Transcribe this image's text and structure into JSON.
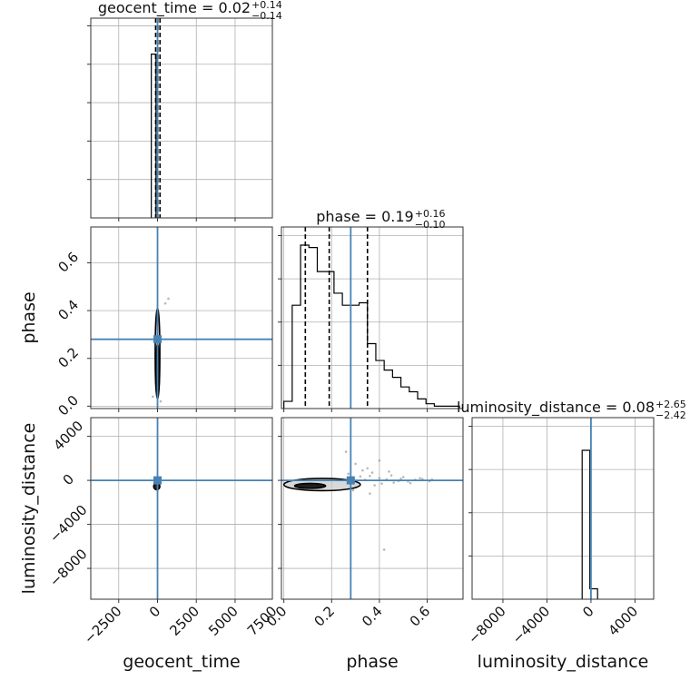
{
  "colors": {
    "truth": "#4682b4",
    "hist": "#000000",
    "grid": "#b0b0b0",
    "axes": "#333333",
    "samples": "#7f7f7f"
  },
  "chart_data": {
    "type": "corner",
    "parameters": [
      "geocent_time",
      "phase",
      "luminosity_distance"
    ],
    "truths": {
      "geocent_time": 0,
      "phase": 0.28,
      "luminosity_distance": 0
    },
    "titles": [
      {
        "param": "geocent_time",
        "text": "geocent_time = 0.02",
        "plus": "+0.14",
        "minus": "−0.14"
      },
      {
        "param": "phase",
        "text": "phase = 0.19",
        "plus": "+0.16",
        "minus": "−0.10"
      },
      {
        "param": "luminosity_distance",
        "text": "luminosity_distance = 0.08",
        "plus": "+2.65",
        "minus": "−2.42"
      }
    ],
    "xlabels": [
      "geocent_time",
      "phase",
      "luminosity_distance"
    ],
    "ylabels": [
      "phase",
      "luminosity_distance"
    ],
    "ranges": {
      "geocent_time": [
        -4300,
        7400
      ],
      "phase": [
        -0.01,
        0.75
      ],
      "luminosity_distance": [
        -10800,
        5700
      ]
    },
    "ticks": {
      "geocent_time": {
        "values": [
          -2500,
          0,
          2500,
          5000,
          7500
        ],
        "labels": [
          "−2500",
          "0",
          "2500",
          "5000",
          "7500"
        ]
      },
      "phase": {
        "values": [
          0.0,
          0.2,
          0.4,
          0.6
        ],
        "labels": [
          "0.0",
          "0.2",
          "0.4",
          "0.6"
        ]
      },
      "luminosity_distance": {
        "values": [
          -8000,
          -4000,
          0,
          4000
        ],
        "labels": [
          "−8000",
          "−4000",
          "0",
          "4000"
        ]
      }
    },
    "hist_geocent_time": {
      "bins": [
        -400,
        -100,
        200
      ],
      "counts": [
        1.0,
        0.0
      ]
    },
    "hist_phase": {
      "bins": [
        0.0,
        0.035,
        0.07,
        0.105,
        0.14,
        0.175,
        0.21,
        0.245,
        0.28,
        0.315,
        0.35,
        0.385,
        0.42,
        0.455,
        0.49,
        0.525,
        0.56,
        0.595,
        0.63,
        0.665,
        0.7,
        0.735
      ],
      "counts": [
        0.03,
        0.43,
        0.68,
        0.67,
        0.57,
        0.57,
        0.48,
        0.43,
        0.43,
        0.44,
        0.27,
        0.2,
        0.16,
        0.13,
        0.09,
        0.07,
        0.04,
        0.02,
        0.01,
        0.01,
        0.01
      ],
      "quantiles": [
        0.09,
        0.19,
        0.35
      ]
    },
    "hist_luminosity_distance": {
      "bins": [
        -800,
        -100,
        600
      ],
      "counts": [
        1.0,
        0.07
      ]
    },
    "hist_geocent_time_quantiles": [
      -120,
      20,
      160
    ],
    "hist_luminosity_distance_quantiles": [
      -2.34,
      0.08,
      2.73
    ],
    "scatter_phase_luminosity": {
      "points": [
        [
          0.3,
          1500
        ],
        [
          0.33,
          900
        ],
        [
          0.27,
          600
        ],
        [
          0.36,
          400
        ],
        [
          0.4,
          200
        ],
        [
          0.43,
          100
        ],
        [
          0.46,
          -200
        ],
        [
          0.49,
          150
        ],
        [
          0.52,
          -100
        ],
        [
          0.55,
          50
        ],
        [
          0.58,
          120
        ],
        [
          0.61,
          -80
        ],
        [
          0.45,
          450
        ],
        [
          0.38,
          -450
        ],
        [
          0.32,
          350
        ],
        [
          0.35,
          1100
        ],
        [
          0.41,
          -300
        ],
        [
          0.5,
          300
        ],
        [
          0.29,
          -900
        ],
        [
          0.36,
          -1200
        ],
        [
          0.44,
          800
        ],
        [
          0.53,
          -250
        ],
        [
          0.57,
          200
        ],
        [
          0.4,
          1800
        ],
        [
          0.26,
          2600
        ],
        [
          0.42,
          -6300
        ],
        [
          0.62,
          80
        ],
        [
          0.48,
          -50
        ],
        [
          0.34,
          50
        ],
        [
          0.37,
          700
        ]
      ],
      "contours": [
        {
          "cx": 0.11,
          "cy": -500,
          "rx": 0.065,
          "ry": 220,
          "level": "inner"
        },
        {
          "cx": 0.16,
          "cy": -380,
          "rx": 0.16,
          "ry": 560,
          "level": "outer"
        }
      ]
    },
    "scatter_time_phase": {
      "contours": [
        {
          "cx": 0,
          "cy": 0.15,
          "rx": 120,
          "ry": 0.11,
          "level": "inner"
        },
        {
          "cx": 0,
          "cy": 0.22,
          "rx": 150,
          "ry": 0.19,
          "level": "outer"
        }
      ],
      "points": [
        [
          500,
          0.43
        ],
        [
          700,
          0.45
        ],
        [
          -300,
          0.04
        ],
        [
          200,
          0.02
        ]
      ]
    },
    "scatter_time_luminosity": {
      "contours": [
        {
          "cx": -50,
          "cy": -550,
          "rx": 200,
          "ry": 300,
          "level": "inner"
        }
      ]
    }
  }
}
